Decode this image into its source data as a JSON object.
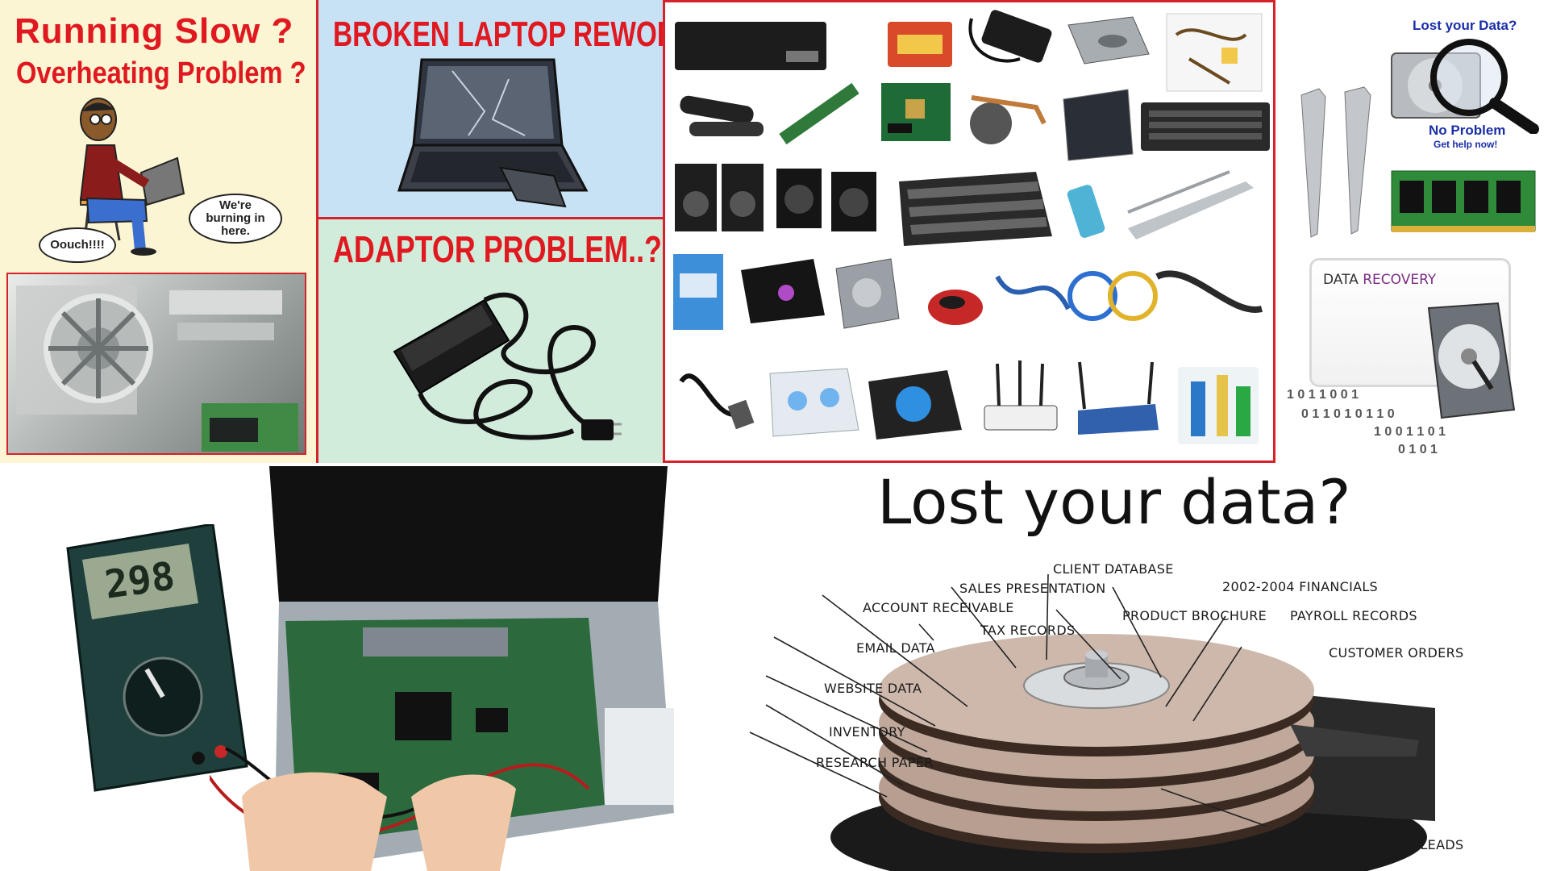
{
  "panels": {
    "running_slow": {
      "line1": "Running Slow ?",
      "line2": "Overheating Problem ?",
      "bubble_left": "Oouch!!!!",
      "bubble_right": "We're burning in here."
    },
    "broken_laptop": {
      "title": "BROKEN LAPTOP REWORK"
    },
    "adaptor": {
      "title": "ADAPTOR PROBLEM..?"
    },
    "lost_data_small": {
      "question": "Lost your Data?",
      "answer": "No Problem",
      "help": "Get help now!"
    },
    "data_recovery": {
      "word1": "DATA",
      "word2": "RECOVERY"
    },
    "multimeter": {
      "reading": "298"
    },
    "lost_data_big": {
      "title": "Lost your data?",
      "labels": [
        "CLIENT DATABASE",
        "SALES PRESENTATION",
        "2002-2004 FINANCIALS",
        "ACCOUNT RECEIVABLE",
        "PRODUCT BROCHURE",
        "PAYROLL RECORDS",
        "TAX RECORDS",
        "EMAIL DATA",
        "CUSTOMER ORDERS",
        "WEBSITE DATA",
        "INVENTORY",
        "RESEARCH PAPER",
        "SALES LEADS"
      ]
    }
  },
  "colors": {
    "accent_red": "#e0181f",
    "cream": "#fbf5d3",
    "light_blue": "#c8e2f5",
    "mint": "#d2ecdc",
    "recovery_purple": "#7a2d84"
  },
  "icons": [
    "person-with-laptop-icon",
    "dusty-fan-icon",
    "broken-laptop-icon",
    "power-adaptor-icon",
    "laptop-battery-icon",
    "memory-card-icon",
    "charger-icon",
    "dvd-drive-icon",
    "lcd-cable-icon",
    "speaker-bar-icon",
    "inverter-board-icon",
    "motherboard-icon",
    "cpu-fan-icon",
    "lcd-panel-icon",
    "keyboard-icon",
    "speakers-icon",
    "subwoofer-icon",
    "usb-drive-icon",
    "hinge-icon",
    "antivirus-box-icon",
    "laptop-skin-icon",
    "hard-drive-icon",
    "mouse-icon",
    "usb-cable-icon",
    "lan-cable-icon",
    "power-cord-icon",
    "cooling-pad-icon",
    "router-icon",
    "cleaning-kit-icon",
    "ram-stick-icon",
    "magnifier-icon",
    "multimeter-icon",
    "laptop-repair-icon",
    "hard-disk-platter-icon"
  ]
}
